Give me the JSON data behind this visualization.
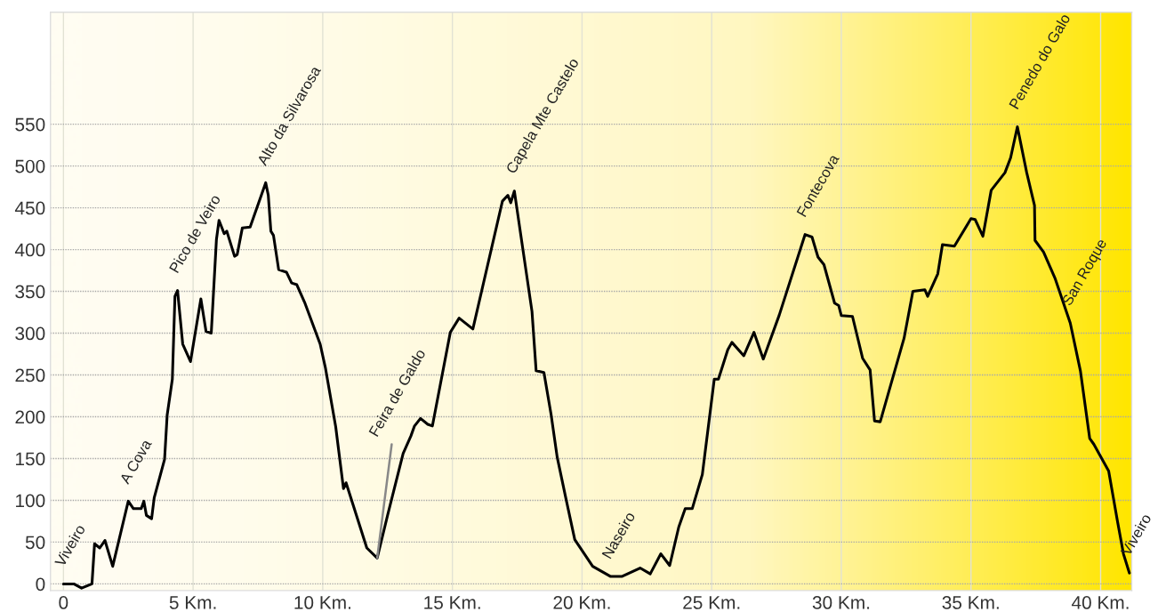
{
  "chart_data": {
    "type": "line",
    "x": [
      0,
      0.4,
      0.7,
      1.1,
      1.2,
      1.4,
      1.6,
      1.9,
      2.5,
      2.7,
      3.0,
      3.1,
      3.2,
      3.4,
      3.5,
      3.9,
      4.0,
      4.2,
      4.3,
      4.4,
      4.6,
      4.9,
      5.3,
      5.5,
      5.7,
      5.9,
      6.0,
      6.2,
      6.3,
      6.6,
      6.7,
      6.9,
      7.2,
      7.8,
      7.9,
      8.0,
      8.1,
      8.3,
      8.6,
      8.8,
      9.0,
      9.3,
      9.9,
      10.1,
      10.5,
      10.8,
      10.9,
      11.7,
      12.1,
      12.5,
      13.1,
      13.4,
      13.54,
      13.77,
      14.05,
      14.23,
      14.92,
      15.26,
      15.79,
      16.93,
      17.14,
      17.25,
      17.39,
      18.07,
      18.23,
      18.53,
      18.81,
      19.04,
      19.38,
      19.72,
      20.41,
      21.09,
      21.55,
      22.24,
      22.63,
      23.04,
      23.38,
      23.73,
      23.98,
      24.25,
      24.64,
      25.1,
      25.26,
      25.62,
      25.78,
      26.24,
      26.63,
      26.99,
      27.61,
      28.6,
      28.87,
      29.1,
      29.33,
      29.74,
      29.9,
      30.0,
      30.43,
      30.82,
      31.11,
      31.28,
      31.5,
      32.42,
      32.76,
      33.22,
      33.33,
      33.72,
      33.9,
      34.36,
      35.0,
      35.16,
      35.46,
      35.78,
      36.31,
      36.53,
      36.79,
      37.15,
      37.45,
      37.47,
      37.8,
      38.25,
      38.83,
      39.22,
      39.58,
      39.74,
      40.31,
      40.65,
      40.88,
      41.11
    ],
    "values": [
      0,
      0,
      -5,
      0,
      48,
      43,
      52,
      21,
      99,
      90,
      90,
      99,
      82,
      78,
      103,
      149,
      202,
      245,
      344,
      351,
      287,
      266,
      341,
      302,
      300,
      412,
      435,
      419,
      422,
      392,
      394,
      426,
      427,
      480,
      465,
      422,
      417,
      376,
      373,
      360,
      358,
      337,
      287,
      259,
      188,
      114,
      121,
      43,
      31,
      82,
      156,
      177,
      189,
      198,
      191,
      189,
      301,
      318,
      305,
      458,
      465,
      456,
      470,
      326,
      255,
      253,
      202,
      152,
      102,
      53,
      21,
      9,
      9,
      19,
      12,
      36,
      22,
      68,
      90,
      90,
      131,
      245,
      245,
      280,
      289,
      273,
      301,
      269,
      322,
      418,
      415,
      391,
      382,
      336,
      333,
      321,
      320,
      270,
      256,
      195,
      194,
      294,
      350,
      352,
      344,
      371,
      406,
      404,
      437,
      436,
      416,
      471,
      492,
      510,
      547,
      492,
      453,
      411,
      397,
      365,
      312,
      255,
      174,
      167,
      135,
      75,
      36,
      13
    ],
    "color": "#000000",
    "xlim": [
      -0.5,
      41.2
    ],
    "ylim": [
      -8,
      684
    ],
    "xticks": [
      0,
      {
        "value": 5,
        "label": "5 Km."
      },
      {
        "value": 10,
        "label": "10 Km."
      },
      {
        "value": 15,
        "label": "15 Km."
      },
      {
        "value": 20,
        "label": "20 Km."
      },
      {
        "value": 25,
        "label": "25 Km."
      },
      {
        "value": 30,
        "label": "30 Km."
      },
      {
        "value": 35,
        "label": "35 Km."
      },
      {
        "value": 40,
        "label": "40 Km."
      }
    ],
    "yticks": [
      0,
      50,
      100,
      150,
      200,
      250,
      300,
      350,
      400,
      450,
      500,
      550
    ],
    "grid": true,
    "marker": "none",
    "line_style": "solid",
    "legend": false,
    "annotations": [
      {
        "text": "Viveiro",
        "x": 0,
        "y": 0
      },
      {
        "text": "A Cova",
        "x": 2.5,
        "y": 99
      },
      {
        "text": "Pico de Veiro",
        "x": 4.4,
        "y": 351
      },
      {
        "text": "Alto da Silvarosa",
        "x": 7.8,
        "y": 480
      },
      {
        "text": "Feira de Galdo",
        "x": 12.1,
        "y": 31
      },
      {
        "text": "Capela Mte Castelo",
        "x": 17.39,
        "y": 470
      },
      {
        "text": "Naseiro",
        "x": 21.09,
        "y": 9
      },
      {
        "text": "Fontecova",
        "x": 28.6,
        "y": 418
      },
      {
        "text": "Penedo do Galo",
        "x": 36.79,
        "y": 547
      },
      {
        "text": "San Roque",
        "x": 38.83,
        "y": 312
      },
      {
        "text": "Viveiro",
        "x": 41.11,
        "y": 13
      }
    ]
  }
}
